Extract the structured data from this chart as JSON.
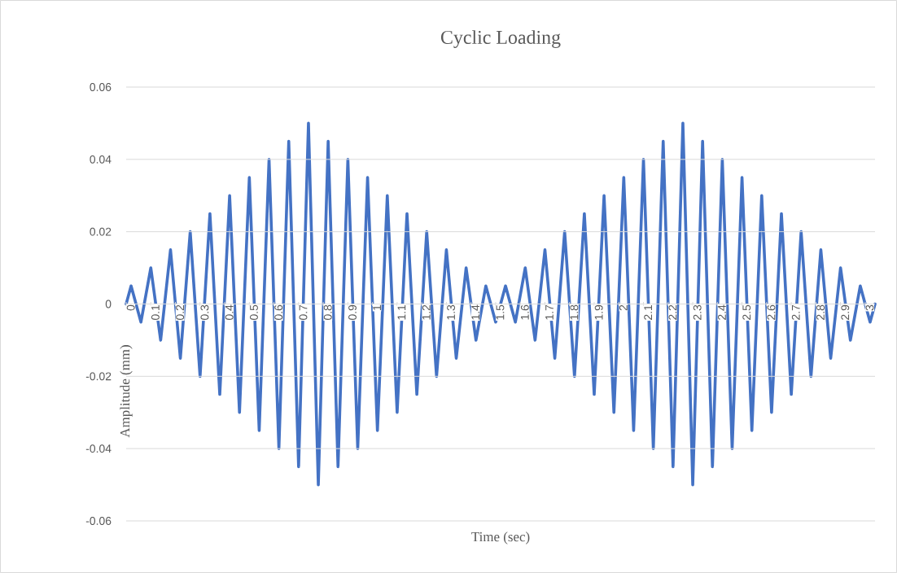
{
  "chart_data": {
    "type": "line",
    "title": "Cyclic Loading",
    "xlabel": "Time (sec)",
    "ylabel": "Amplitude (mm)",
    "color": "#4472c4",
    "grid": "y",
    "x": [
      0,
      0.02,
      0.06,
      0.1,
      0.14,
      0.18,
      0.22,
      0.26,
      0.3,
      0.34,
      0.38,
      0.42,
      0.46,
      0.5,
      0.54,
      0.58,
      0.62,
      0.66,
      0.7,
      0.74,
      0.78,
      0.82,
      0.86,
      0.9,
      0.94,
      0.98,
      1.02,
      1.06,
      1.1,
      1.14,
      1.18,
      1.22,
      1.26,
      1.3,
      1.34,
      1.38,
      1.42,
      1.46,
      1.5,
      1.54,
      1.58,
      1.62,
      1.66,
      1.7,
      1.74,
      1.78,
      1.82,
      1.86,
      1.9,
      1.94,
      1.98,
      2.02,
      2.06,
      2.1,
      2.14,
      2.18,
      2.22,
      2.26,
      2.3,
      2.34,
      2.38,
      2.42,
      2.46,
      2.5,
      2.54,
      2.58,
      2.62,
      2.66,
      2.7,
      2.74,
      2.78,
      2.82,
      2.86,
      2.9,
      2.94,
      2.98,
      3.02,
      3.04
    ],
    "values": [
      0,
      0.005,
      -0.005,
      0.01,
      -0.01,
      0.015,
      -0.015,
      0.02,
      -0.02,
      0.025,
      -0.025,
      0.03,
      -0.03,
      0.035,
      -0.035,
      0.04,
      -0.04,
      0.045,
      -0.045,
      0.05,
      -0.05,
      0.045,
      -0.045,
      0.04,
      -0.04,
      0.035,
      -0.035,
      0.03,
      -0.03,
      0.025,
      -0.025,
      0.02,
      -0.02,
      0.015,
      -0.015,
      0.01,
      -0.01,
      0.005,
      -0.005,
      0.005,
      -0.005,
      0.01,
      -0.01,
      0.015,
      -0.015,
      0.02,
      -0.02,
      0.025,
      -0.025,
      0.03,
      -0.03,
      0.035,
      -0.035,
      0.04,
      -0.04,
      0.045,
      -0.045,
      0.05,
      -0.05,
      0.045,
      -0.045,
      0.04,
      -0.04,
      0.035,
      -0.035,
      0.03,
      -0.03,
      0.025,
      -0.025,
      0.02,
      -0.02,
      0.015,
      -0.015,
      0.01,
      -0.01,
      0.005,
      -0.005,
      0
    ],
    "xlim": [
      0,
      3.04
    ],
    "xticks": [
      0,
      0.1,
      0.2,
      0.3,
      0.4,
      0.5,
      0.6,
      0.7,
      0.8,
      0.9,
      1,
      1.1,
      1.2,
      1.3,
      1.4,
      1.5,
      1.6,
      1.7,
      1.8,
      1.9,
      2,
      2.1,
      2.2,
      2.3,
      2.4,
      2.5,
      2.6,
      2.7,
      2.8,
      2.9,
      3
    ],
    "ylim": [
      -0.06,
      0.06
    ],
    "yticks": [
      -0.06,
      -0.04,
      -0.02,
      0,
      0.02,
      0.04,
      0.06
    ]
  }
}
